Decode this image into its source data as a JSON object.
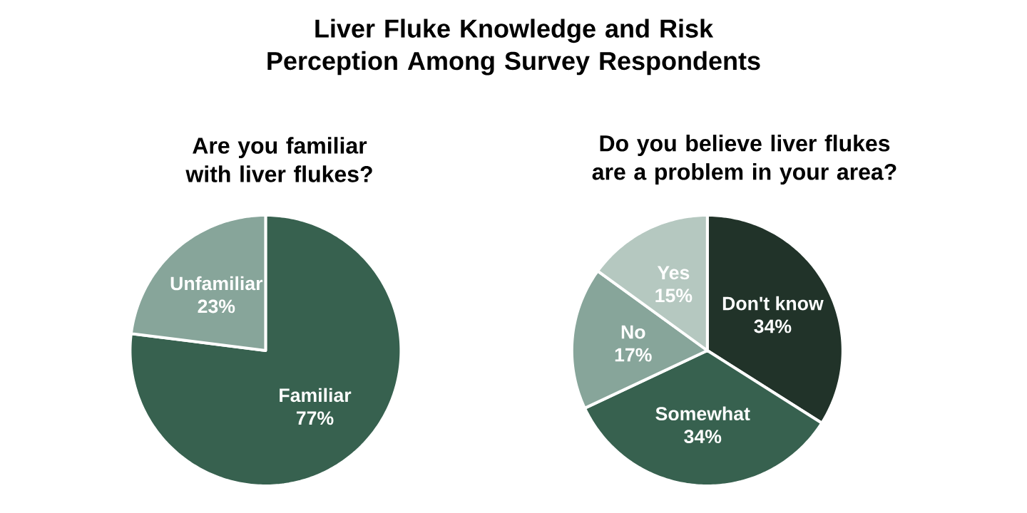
{
  "chart_data": [
    {
      "type": "pie",
      "title": "Liver Fluke Knowledge and Risk Perception Among Survey Respondents",
      "subtitle": "Are you familiar with liver flukes?",
      "categories": [
        "Familiar",
        "Unfamiliar"
      ],
      "values": [
        77,
        23
      ],
      "value_labels": [
        "77%",
        "23%"
      ],
      "colors": [
        "#37614f",
        "#87a59a"
      ]
    },
    {
      "type": "pie",
      "subtitle": "Do you believe liver flukes are a problem in your area?",
      "categories": [
        "Don't know",
        "Somewhat",
        "No",
        "Yes"
      ],
      "values": [
        34,
        34,
        17,
        15
      ],
      "value_labels": [
        "34%",
        "34%",
        "17%",
        "15%"
      ],
      "colors": [
        "#213329",
        "#37614f",
        "#87a59a",
        "#b5c8c0"
      ]
    }
  ]
}
